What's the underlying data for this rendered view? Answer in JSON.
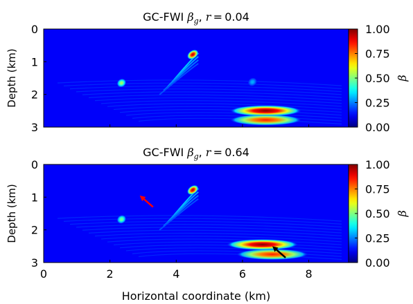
{
  "chart_data": [
    {
      "type": "heatmap",
      "title": "GC-FWI",
      "title_symbol": "β",
      "title_symbol_sub": "g",
      "title_param": "r",
      "title_param_value": "0.04",
      "ylabel": "Depth (km)",
      "xlim": [
        0,
        9.2
      ],
      "ylim": [
        0,
        3
      ],
      "y_ticks": [
        "0",
        "1",
        "2",
        "3"
      ],
      "x_tick_labels_shown": false,
      "colorbar": {
        "label": "β",
        "range": [
          0,
          1
        ],
        "ticks": [
          "1.00",
          "0.75",
          "0.50",
          "0.25",
          "0.00"
        ],
        "colormap": "jet"
      },
      "hotspots": [
        {
          "x": 4.5,
          "y": 0.78,
          "value": 0.95
        },
        {
          "x": 2.35,
          "y": 1.65,
          "value": 0.55
        },
        {
          "x": 6.7,
          "y": 2.5,
          "value": 1.0
        },
        {
          "x": 6.7,
          "y": 2.78,
          "value": 0.85
        },
        {
          "x": 6.3,
          "y": 1.62,
          "value": 0.3
        }
      ]
    },
    {
      "type": "heatmap",
      "title": "GC-FWI",
      "title_symbol": "β",
      "title_symbol_sub": "g",
      "title_param": "r",
      "title_param_value": "0.64",
      "xlabel": "Horizontal coordinate (km)",
      "ylabel": "Depth (km)",
      "xlim": [
        0,
        9.2
      ],
      "ylim": [
        0,
        3
      ],
      "x_ticks": [
        "0",
        "2",
        "4",
        "6",
        "8"
      ],
      "y_ticks": [
        "0",
        "1",
        "2",
        "3"
      ],
      "colorbar": {
        "label": "β",
        "range": [
          0,
          1
        ],
        "ticks": [
          "1.00",
          "0.75",
          "0.50",
          "0.25",
          "0.00"
        ],
        "colormap": "jet"
      },
      "hotspots": [
        {
          "x": 4.5,
          "y": 0.78,
          "value": 0.95
        },
        {
          "x": 2.35,
          "y": 1.68,
          "value": 0.5
        },
        {
          "x": 6.6,
          "y": 2.45,
          "value": 1.0
        },
        {
          "x": 6.9,
          "y": 2.75,
          "value": 0.85
        }
      ],
      "annotations": [
        {
          "type": "arrow",
          "color": "#ff0000",
          "from": [
            3.3,
            1.3
          ],
          "to": [
            2.9,
            0.95
          ]
        },
        {
          "type": "arrow",
          "color": "#000000",
          "from": [
            7.3,
            2.85
          ],
          "to": [
            6.9,
            2.5
          ]
        }
      ]
    }
  ]
}
